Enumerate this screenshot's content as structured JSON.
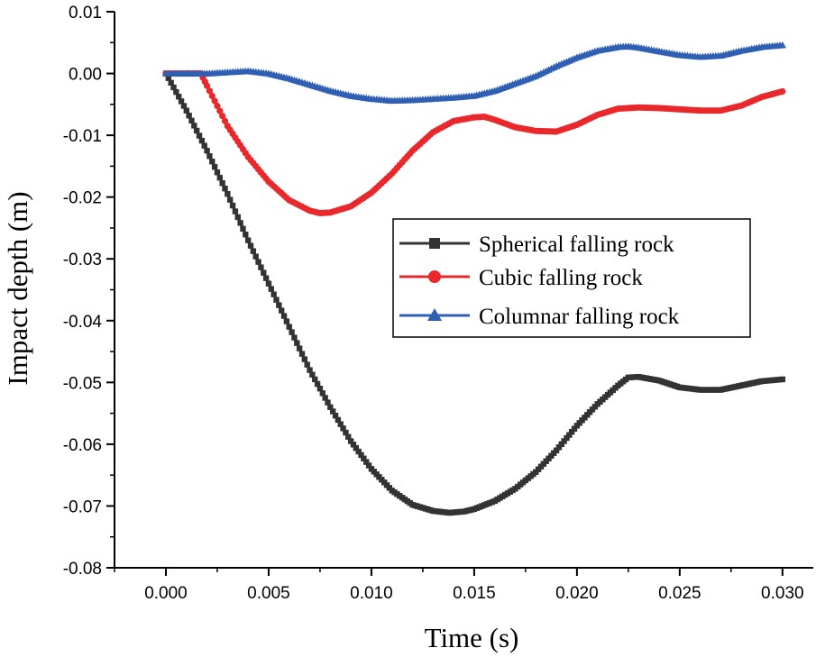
{
  "chart_data": {
    "type": "line",
    "title": "",
    "xlabel": "Time (s)",
    "ylabel": "Impact depth (m)",
    "xlim": [
      -0.0025,
      0.0315
    ],
    "ylim": [
      -0.08,
      0.01
    ],
    "xticks": [
      "0.000",
      "0.005",
      "0.010",
      "0.015",
      "0.020",
      "0.025",
      "0.030"
    ],
    "yticks": [
      "0.01",
      "0.00",
      "-0.01",
      "-0.02",
      "-0.03",
      "-0.04",
      "-0.05",
      "-0.06",
      "-0.07",
      "-0.08"
    ],
    "grid": false,
    "legend_position": "middle-right",
    "series": [
      {
        "name": "Spherical falling rock",
        "color": "#333333",
        "marker": "square",
        "points": [
          [
            0.0,
            0.0
          ],
          [
            0.001,
            -0.006
          ],
          [
            0.002,
            -0.0125
          ],
          [
            0.003,
            -0.0195
          ],
          [
            0.004,
            -0.027
          ],
          [
            0.005,
            -0.034
          ],
          [
            0.006,
            -0.041
          ],
          [
            0.007,
            -0.048
          ],
          [
            0.008,
            -0.054
          ],
          [
            0.009,
            -0.0595
          ],
          [
            0.01,
            -0.064
          ],
          [
            0.011,
            -0.0675
          ],
          [
            0.012,
            -0.0698
          ],
          [
            0.013,
            -0.0708
          ],
          [
            0.0138,
            -0.0711
          ],
          [
            0.0145,
            -0.0709
          ],
          [
            0.015,
            -0.0705
          ],
          [
            0.016,
            -0.0692
          ],
          [
            0.017,
            -0.0672
          ],
          [
            0.018,
            -0.0645
          ],
          [
            0.019,
            -0.061
          ],
          [
            0.02,
            -0.057
          ],
          [
            0.021,
            -0.0535
          ],
          [
            0.022,
            -0.0505
          ],
          [
            0.0225,
            -0.0492
          ],
          [
            0.023,
            -0.0491
          ],
          [
            0.024,
            -0.0497
          ],
          [
            0.025,
            -0.0508
          ],
          [
            0.026,
            -0.0512
          ],
          [
            0.027,
            -0.0512
          ],
          [
            0.028,
            -0.0505
          ],
          [
            0.029,
            -0.0498
          ],
          [
            0.03,
            -0.0495
          ]
        ]
      },
      {
        "name": "Cubic falling rock",
        "color": "#e8282b",
        "marker": "circle",
        "points": [
          [
            0.0,
            0.0
          ],
          [
            0.0017,
            0.0
          ],
          [
            0.002,
            -0.002
          ],
          [
            0.003,
            -0.0085
          ],
          [
            0.004,
            -0.0135
          ],
          [
            0.005,
            -0.0175
          ],
          [
            0.006,
            -0.0205
          ],
          [
            0.007,
            -0.0222
          ],
          [
            0.0075,
            -0.0226
          ],
          [
            0.008,
            -0.0225
          ],
          [
            0.009,
            -0.0215
          ],
          [
            0.01,
            -0.0193
          ],
          [
            0.011,
            -0.0162
          ],
          [
            0.012,
            -0.0125
          ],
          [
            0.013,
            -0.0095
          ],
          [
            0.014,
            -0.0077
          ],
          [
            0.015,
            -0.0071
          ],
          [
            0.0155,
            -0.007
          ],
          [
            0.016,
            -0.0075
          ],
          [
            0.017,
            -0.0087
          ],
          [
            0.018,
            -0.0093
          ],
          [
            0.019,
            -0.0094
          ],
          [
            0.02,
            -0.0083
          ],
          [
            0.021,
            -0.0067
          ],
          [
            0.022,
            -0.0057
          ],
          [
            0.023,
            -0.0055
          ],
          [
            0.024,
            -0.0056
          ],
          [
            0.025,
            -0.0058
          ],
          [
            0.026,
            -0.006
          ],
          [
            0.027,
            -0.006
          ],
          [
            0.028,
            -0.0052
          ],
          [
            0.029,
            -0.0038
          ],
          [
            0.03,
            -0.0029
          ]
        ]
      },
      {
        "name": "Columnar falling rock",
        "color": "#2f5fb3",
        "marker": "triangle",
        "points": [
          [
            0.0,
            0.0
          ],
          [
            0.002,
            0.0
          ],
          [
            0.003,
            0.0002
          ],
          [
            0.004,
            0.0004
          ],
          [
            0.005,
            0.0
          ],
          [
            0.006,
            -0.0008
          ],
          [
            0.007,
            -0.0018
          ],
          [
            0.008,
            -0.0028
          ],
          [
            0.009,
            -0.0036
          ],
          [
            0.01,
            -0.0041
          ],
          [
            0.011,
            -0.0044
          ],
          [
            0.012,
            -0.0043
          ],
          [
            0.013,
            -0.0041
          ],
          [
            0.014,
            -0.0039
          ],
          [
            0.015,
            -0.0036
          ],
          [
            0.016,
            -0.0028
          ],
          [
            0.017,
            -0.0016
          ],
          [
            0.018,
            -0.0004
          ],
          [
            0.019,
            0.0012
          ],
          [
            0.02,
            0.0026
          ],
          [
            0.021,
            0.0037
          ],
          [
            0.022,
            0.0043
          ],
          [
            0.0225,
            0.0044
          ],
          [
            0.023,
            0.0042
          ],
          [
            0.024,
            0.0036
          ],
          [
            0.025,
            0.003
          ],
          [
            0.026,
            0.0027
          ],
          [
            0.027,
            0.0029
          ],
          [
            0.028,
            0.0037
          ],
          [
            0.029,
            0.0043
          ],
          [
            0.03,
            0.0046
          ]
        ]
      }
    ]
  }
}
